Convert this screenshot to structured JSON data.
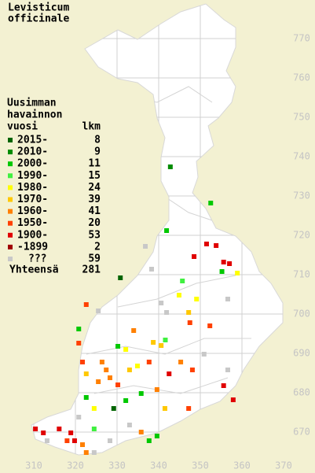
{
  "title": [
    "Levisticum",
    "officinale"
  ],
  "legend": {
    "heading": [
      "Uusimman",
      "havainnon"
    ],
    "columns": {
      "period": "vuosi",
      "count": "lkm"
    },
    "items": [
      {
        "label": "2015-",
        "count": 8,
        "color": "#006400"
      },
      {
        "label": "2010-",
        "count": 9,
        "color": "#008c00"
      },
      {
        "label": "2000-",
        "count": 11,
        "color": "#00c800"
      },
      {
        "label": "1990-",
        "count": 15,
        "color": "#40f040"
      },
      {
        "label": "1980-",
        "count": 24,
        "color": "#ffff00"
      },
      {
        "label": "1970-",
        "count": 39,
        "color": "#ffc800"
      },
      {
        "label": "1960-",
        "count": 41,
        "color": "#ff8000"
      },
      {
        "label": "1950-",
        "count": 20,
        "color": "#ff4000"
      },
      {
        "label": "1900-",
        "count": 53,
        "color": "#e00000"
      },
      {
        "label": "-1899",
        "count": 2,
        "color": "#a00000"
      },
      {
        "label": "???",
        "count": 59,
        "color": "#c8c8c8"
      }
    ],
    "total": {
      "label": "Yhteensä",
      "count": 281
    }
  },
  "map": {
    "xticks": [
      310,
      320,
      330,
      340,
      350,
      360,
      370
    ],
    "yticks": [
      670,
      680,
      690,
      700,
      710,
      720,
      730,
      740,
      750,
      760,
      770
    ],
    "squares": [
      {
        "e": 342.8,
        "n": 737.4,
        "period": "2010-"
      },
      {
        "e": 352.5,
        "n": 728.2,
        "period": "2000-"
      },
      {
        "e": 351.5,
        "n": 717.8,
        "period": "1900-"
      },
      {
        "e": 353.8,
        "n": 717.4,
        "period": "1900-"
      },
      {
        "e": 355.6,
        "n": 713.2,
        "period": "1900-"
      },
      {
        "e": 357,
        "n": 712.8,
        "period": "1900-"
      },
      {
        "e": 348.5,
        "n": 714.6,
        "period": "1900-"
      },
      {
        "e": 341.9,
        "n": 721.2,
        "period": "2000-"
      },
      {
        "e": 330.8,
        "n": 709.2,
        "period": "2015-"
      },
      {
        "e": 345.7,
        "n": 708.4,
        "period": "1990-"
      },
      {
        "e": 355.2,
        "n": 710.8,
        "period": "2000-"
      },
      {
        "e": 358.9,
        "n": 710.4,
        "period": "1980-"
      },
      {
        "e": 338.3,
        "n": 711.4,
        "period": "???"
      },
      {
        "e": 336.8,
        "n": 717.2,
        "period": "???"
      },
      {
        "e": 322.6,
        "n": 702.4,
        "period": "1950-"
      },
      {
        "e": 325.5,
        "n": 700.8,
        "period": "???"
      },
      {
        "e": 320.8,
        "n": 696.2,
        "period": "2000-"
      },
      {
        "e": 320.8,
        "n": 692.6,
        "period": "1950-"
      },
      {
        "e": 340.6,
        "n": 702.8,
        "period": "???"
      },
      {
        "e": 341.9,
        "n": 700.4,
        "period": "???"
      },
      {
        "e": 344.9,
        "n": 704.8,
        "period": "1980-"
      },
      {
        "e": 347.2,
        "n": 700.4,
        "period": "1970-"
      },
      {
        "e": 347.5,
        "n": 697.8,
        "period": "1950-"
      },
      {
        "e": 352.3,
        "n": 697,
        "period": "1950-"
      },
      {
        "e": 356.6,
        "n": 703.8,
        "period": "???"
      },
      {
        "e": 349.1,
        "n": 703.8,
        "period": "1980-"
      },
      {
        "e": 334,
        "n": 695.8,
        "period": "1960-"
      },
      {
        "e": 330.2,
        "n": 691.8,
        "period": "2000-"
      },
      {
        "e": 332.1,
        "n": 691,
        "period": "1980-"
      },
      {
        "e": 338.7,
        "n": 692.8,
        "period": "1970-"
      },
      {
        "e": 340.6,
        "n": 692,
        "period": "1970-"
      },
      {
        "e": 341.6,
        "n": 693.4,
        "period": "1990-"
      },
      {
        "e": 326.4,
        "n": 687.8,
        "period": "1960-"
      },
      {
        "e": 327.4,
        "n": 685.8,
        "period": "1960-"
      },
      {
        "e": 328.3,
        "n": 683.8,
        "period": "1960-"
      },
      {
        "e": 325.5,
        "n": 682.8,
        "period": "1960-"
      },
      {
        "e": 330.2,
        "n": 682,
        "period": "1950-"
      },
      {
        "e": 333,
        "n": 685.8,
        "period": "1970-"
      },
      {
        "e": 334.9,
        "n": 686.8,
        "period": "1980-"
      },
      {
        "e": 337.7,
        "n": 687.8,
        "period": "1950-"
      },
      {
        "e": 342.5,
        "n": 684.8,
        "period": "1900-"
      },
      {
        "e": 345.3,
        "n": 687.8,
        "period": "1960-"
      },
      {
        "e": 348.1,
        "n": 685.8,
        "period": "1950-"
      },
      {
        "e": 350.9,
        "n": 689.8,
        "period": "???"
      },
      {
        "e": 356.6,
        "n": 685.8,
        "period": "???"
      },
      {
        "e": 355.6,
        "n": 681.8,
        "period": "1900-"
      },
      {
        "e": 357.9,
        "n": 678.2,
        "period": "1900-"
      },
      {
        "e": 322.6,
        "n": 678.8,
        "period": "2000-"
      },
      {
        "e": 324.5,
        "n": 676,
        "period": "1980-"
      },
      {
        "e": 329.2,
        "n": 676,
        "period": "2015-"
      },
      {
        "e": 332.1,
        "n": 678,
        "period": "2000-"
      },
      {
        "e": 335.8,
        "n": 679.8,
        "period": "2000-"
      },
      {
        "e": 339.6,
        "n": 680.8,
        "period": "1960-"
      },
      {
        "e": 341.5,
        "n": 676,
        "period": "1970-"
      },
      {
        "e": 347.2,
        "n": 676,
        "period": "1950-"
      },
      {
        "e": 337.7,
        "n": 667.8,
        "period": "2000-"
      },
      {
        "e": 339.6,
        "n": 669,
        "period": "2000-"
      },
      {
        "e": 335.8,
        "n": 670,
        "period": "1960-"
      },
      {
        "e": 333,
        "n": 671.8,
        "period": "???"
      },
      {
        "e": 310.4,
        "n": 670.8,
        "period": "1900-"
      },
      {
        "e": 312.3,
        "n": 669.8,
        "period": "1900-"
      },
      {
        "e": 316.1,
        "n": 670.8,
        "period": "1900-"
      },
      {
        "e": 318.9,
        "n": 669.8,
        "period": "1900-"
      },
      {
        "e": 319.8,
        "n": 667.8,
        "period": "1900-"
      },
      {
        "e": 321.7,
        "n": 666.8,
        "period": "1960-"
      },
      {
        "e": 322.6,
        "n": 664.8,
        "period": "1960-"
      },
      {
        "e": 318,
        "n": 667.8,
        "period": "1950-"
      },
      {
        "e": 313.2,
        "n": 667.8,
        "period": "???"
      },
      {
        "e": 324.5,
        "n": 670.8,
        "period": "1990-"
      },
      {
        "e": 320.8,
        "n": 673.8,
        "period": "???"
      },
      {
        "e": 324.5,
        "n": 664.8,
        "period": "???"
      },
      {
        "e": 328.3,
        "n": 667.8,
        "period": "???"
      },
      {
        "e": 321.7,
        "n": 687.8,
        "period": "1950-"
      },
      {
        "e": 322.6,
        "n": 684.8,
        "period": "1970-"
      }
    ]
  }
}
